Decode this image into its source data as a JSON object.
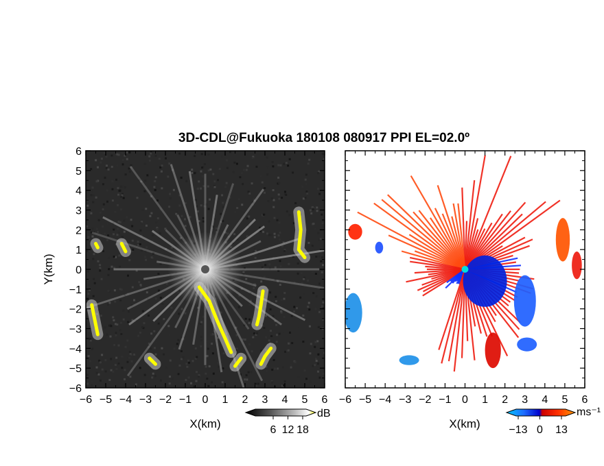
{
  "title": "3D-CDL@Fukuoka 180108 080917 PPI EL=02.0º",
  "chart_data": [
    {
      "type": "heatmap",
      "xlabel": "X(km)",
      "ylabel": "Y(km)",
      "xlim": [
        -6,
        6
      ],
      "ylim": [
        -6,
        6
      ],
      "x_ticks": [
        -6,
        -5,
        -4,
        -3,
        -2,
        -1,
        0,
        1,
        2,
        3,
        4,
        5,
        6
      ],
      "y_ticks": [
        -6,
        -5,
        -4,
        -3,
        -2,
        -1,
        0,
        1,
        2,
        3,
        4,
        5,
        6
      ],
      "x_tick_labels": [
        "−6",
        "−5",
        "−4",
        "−3",
        "−2",
        "−1",
        "0",
        "1",
        "2",
        "3",
        "4",
        "5",
        "6"
      ],
      "y_tick_labels": [
        "−6",
        "−5",
        "−4",
        "−3",
        "−2",
        "−1",
        "0",
        "1",
        "2",
        "3",
        "4",
        "5",
        "6"
      ],
      "colorbar": {
        "unit": "dB",
        "ticks": [
          6,
          12,
          18
        ],
        "tick_labels": [
          "6",
          "12",
          "18"
        ],
        "colors": [
          "#000000",
          "#555555",
          "#aaaaaa",
          "#ffffff",
          "#ffff00"
        ]
      },
      "background_color": "#2a2a2a",
      "features": [
        {
          "kind": "line",
          "points": [
            [
              -0.3,
              -0.9
            ],
            [
              0.2,
              -1.6
            ],
            [
              0.6,
              -2.6
            ],
            [
              1.0,
              -3.5
            ],
            [
              1.3,
              -4.2
            ]
          ],
          "color": "#ffff00"
        },
        {
          "kind": "line",
          "points": [
            [
              2.9,
              -1.1
            ],
            [
              2.8,
              -1.8
            ],
            [
              2.7,
              -2.4
            ],
            [
              2.6,
              -2.8
            ]
          ],
          "color": "#ffff00"
        },
        {
          "kind": "line",
          "points": [
            [
              4.7,
              2.9
            ],
            [
              4.8,
              2.0
            ],
            [
              4.7,
              1.0
            ],
            [
              5.0,
              0.6
            ]
          ],
          "color": "#ffff00"
        },
        {
          "kind": "line",
          "points": [
            [
              3.3,
              -4.0
            ],
            [
              3.0,
              -4.4
            ],
            [
              2.8,
              -4.8
            ]
          ],
          "color": "#ffff00"
        },
        {
          "kind": "line",
          "points": [
            [
              1.8,
              -4.5
            ],
            [
              1.5,
              -4.9
            ]
          ],
          "color": "#ffff00"
        },
        {
          "kind": "line",
          "points": [
            [
              -2.8,
              -4.5
            ],
            [
              -2.5,
              -4.8
            ]
          ],
          "color": "#ffff00"
        },
        {
          "kind": "line",
          "points": [
            [
              -5.7,
              -1.8
            ],
            [
              -5.5,
              -2.8
            ],
            [
              -5.4,
              -3.3
            ]
          ],
          "color": "#ffff00"
        },
        {
          "kind": "line",
          "points": [
            [
              -5.5,
              1.3
            ],
            [
              -5.4,
              1.1
            ]
          ],
          "color": "#ffff00"
        },
        {
          "kind": "line",
          "points": [
            [
              -4.2,
              1.3
            ],
            [
              -4.0,
              0.9
            ]
          ],
          "color": "#ffff00"
        }
      ]
    },
    {
      "type": "heatmap",
      "xlabel": "X(km)",
      "xlim": [
        -6,
        6
      ],
      "ylim": [
        -6,
        6
      ],
      "x_ticks": [
        -6,
        -5,
        -4,
        -3,
        -2,
        -1,
        0,
        1,
        2,
        3,
        4,
        5,
        6
      ],
      "x_tick_labels": [
        "−6",
        "−5",
        "−4",
        "−3",
        "−2",
        "−1",
        "0",
        "1",
        "2",
        "3",
        "4",
        "5",
        "6"
      ],
      "y_ticks": [
        -6,
        -5,
        -4,
        -3,
        -2,
        -1,
        0,
        1,
        2,
        3,
        4,
        5,
        6
      ],
      "colorbar": {
        "unit": "ms⁻¹",
        "ticks": [
          -13,
          0,
          13
        ],
        "tick_labels": [
          "−13",
          "0",
          "13"
        ],
        "colors": [
          "#00c8ff",
          "#1e6eff",
          "#0000cc",
          "#cc0000",
          "#ff3000",
          "#ff9900"
        ]
      },
      "background_color": "#ffffff",
      "features": [
        {
          "kind": "blob",
          "center": [
            1.0,
            -0.6
          ],
          "radius": [
            1.1,
            1.3
          ],
          "color": "#0022dd"
        },
        {
          "kind": "blob",
          "center": [
            3.0,
            -1.6
          ],
          "radius": [
            0.55,
            1.3
          ],
          "color": "#1e60ff"
        },
        {
          "kind": "blob",
          "center": [
            -5.6,
            -2.2
          ],
          "radius": [
            0.45,
            1.0
          ],
          "color": "#1e90e8"
        },
        {
          "kind": "blob",
          "center": [
            4.9,
            1.5
          ],
          "radius": [
            0.35,
            1.1
          ],
          "color": "#ff5500"
        },
        {
          "kind": "blob",
          "center": [
            5.6,
            0.2
          ],
          "radius": [
            0.25,
            0.7
          ],
          "color": "#ee1c10"
        },
        {
          "kind": "blob",
          "center": [
            -5.5,
            1.9
          ],
          "radius": [
            0.35,
            0.4
          ],
          "color": "#ff2200"
        },
        {
          "kind": "blob",
          "center": [
            -2.8,
            -4.6
          ],
          "radius": [
            0.5,
            0.25
          ],
          "color": "#1e90e8"
        },
        {
          "kind": "blob",
          "center": [
            -4.3,
            1.1
          ],
          "radius": [
            0.2,
            0.3
          ],
          "color": "#1e50ff"
        },
        {
          "kind": "blob",
          "center": [
            3.1,
            -3.8
          ],
          "radius": [
            0.5,
            0.35
          ],
          "color": "#1e60ff"
        },
        {
          "kind": "blob",
          "center": [
            1.4,
            -4.1
          ],
          "radius": [
            0.4,
            0.9
          ],
          "color": "#dd0a00"
        }
      ],
      "marker": {
        "center": [
          0,
          0
        ],
        "color": "#00dddd"
      }
    }
  ]
}
